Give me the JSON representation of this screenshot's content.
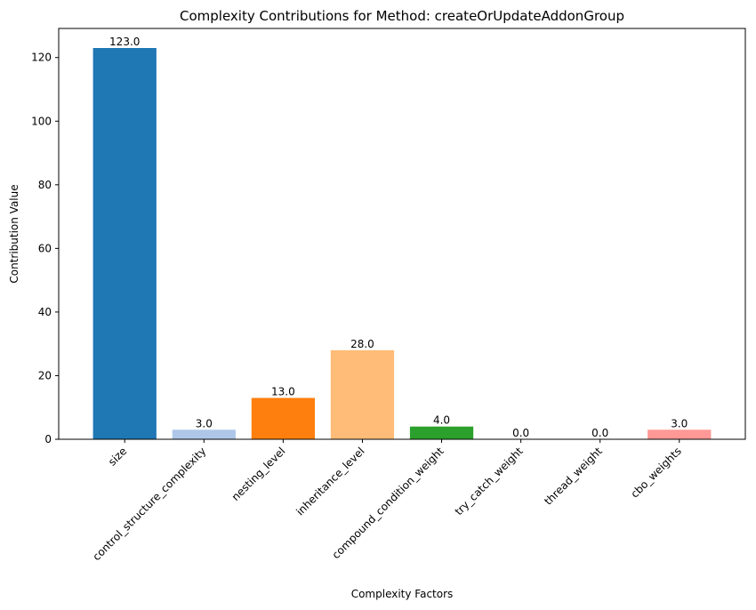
{
  "chart_data": {
    "type": "bar",
    "title": "Complexity Contributions for Method: createOrUpdateAddonGroup",
    "xlabel": "Complexity Factors",
    "ylabel": "Contribution Value",
    "categories": [
      "size",
      "control_structure_complexity",
      "nesting_level",
      "inheritance_level",
      "compound_condition_weight",
      "try_catch_weight",
      "thread_weight",
      "cbo_weights"
    ],
    "values": [
      123.0,
      3.0,
      13.0,
      28.0,
      4.0,
      0.0,
      0.0,
      3.0
    ],
    "value_labels": [
      "123.0",
      "3.0",
      "13.0",
      "28.0",
      "4.0",
      "0.0",
      "0.0",
      "3.0"
    ],
    "colors": [
      "#1f77b4",
      "#aec7e8",
      "#ff7f0e",
      "#ffbb78",
      "#2ca02c",
      "#98df8a",
      "#d62728",
      "#ff9896"
    ],
    "yticks": [
      0,
      20,
      40,
      60,
      80,
      100,
      120
    ],
    "ylim": [
      0,
      129.15
    ],
    "grid": false,
    "legend": "none"
  }
}
